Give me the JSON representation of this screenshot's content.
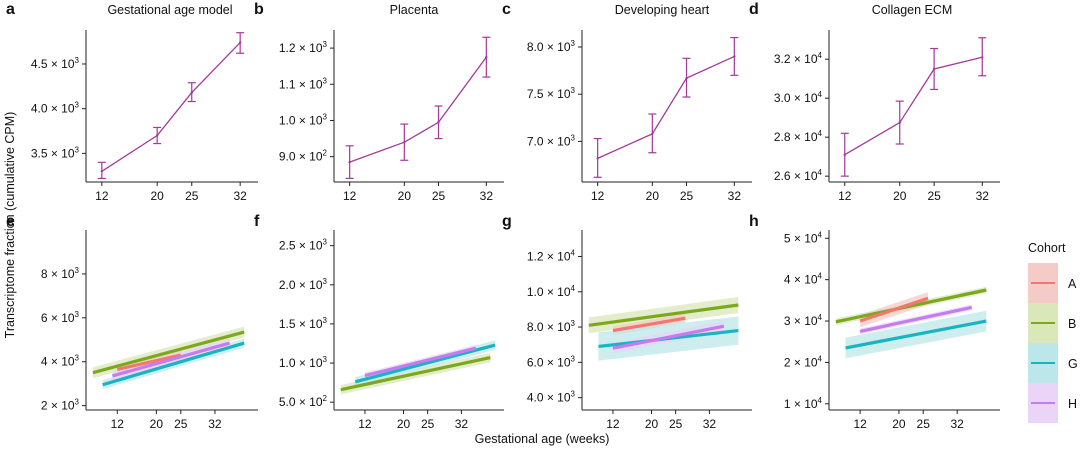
{
  "figure": {
    "ylabel": "Transcriptome fraction (cumulative CPM)",
    "xlabel": "Gestational age (weeks)",
    "legend": {
      "title": "Cohort",
      "entries": [
        {
          "name": "A",
          "color": "#f0786f",
          "band": "#f5cbc7"
        },
        {
          "name": "B",
          "color": "#7ca81e",
          "band": "#d9e7b9"
        },
        {
          "name": "G",
          "color": "#19b4c0",
          "band": "#bce7ea"
        },
        {
          "name": "H",
          "color": "#c47cf0",
          "band": "#ead4f8"
        }
      ]
    }
  },
  "chart_data": [
    {
      "panel": "a",
      "title": "Gestational age model",
      "type": "line",
      "color": "#a3399a",
      "x": [
        12,
        20,
        25,
        32
      ],
      "x_ticks": [
        "12",
        "20",
        "25",
        "32"
      ],
      "xlim": [
        10,
        34
      ],
      "y": [
        3300,
        3700,
        4180,
        4740
      ],
      "y_err_low": [
        3220,
        3610,
        4080,
        4620
      ],
      "y_err_high": [
        3400,
        3790,
        4290,
        4850
      ],
      "ylim": [
        3180,
        4880
      ],
      "y_ticks": [
        {
          "v": 3500,
          "m": "3.5",
          "e": "3"
        },
        {
          "v": 4000,
          "m": "4.0",
          "e": "3"
        },
        {
          "v": 4500,
          "m": "4.5",
          "e": "3"
        }
      ]
    },
    {
      "panel": "b",
      "title": "Placenta",
      "type": "line",
      "color": "#a3399a",
      "x": [
        12,
        20,
        25,
        32
      ],
      "x_ticks": [
        "12",
        "20",
        "25",
        "32"
      ],
      "xlim": [
        10,
        34
      ],
      "y": [
        885,
        940,
        995,
        1175
      ],
      "y_err_low": [
        840,
        890,
        950,
        1120
      ],
      "y_err_high": [
        930,
        990,
        1040,
        1230
      ],
      "ylim": [
        830,
        1250
      ],
      "y_ticks": [
        {
          "v": 900,
          "m": "9.0",
          "e": "2"
        },
        {
          "v": 1000,
          "m": "1.0",
          "e": "3"
        },
        {
          "v": 1100,
          "m": "1.1",
          "e": "3"
        },
        {
          "v": 1200,
          "m": "1.2",
          "e": "3"
        }
      ]
    },
    {
      "panel": "c",
      "title": "Developing heart",
      "type": "line",
      "color": "#a3399a",
      "x": [
        12,
        20,
        25,
        32
      ],
      "x_ticks": [
        "12",
        "20",
        "25",
        "32"
      ],
      "xlim": [
        10,
        34
      ],
      "y": [
        6820,
        7080,
        7670,
        7900
      ],
      "y_err_low": [
        6620,
        6880,
        7470,
        7700
      ],
      "y_err_high": [
        7030,
        7290,
        7880,
        8100
      ],
      "ylim": [
        6570,
        8180
      ],
      "y_ticks": [
        {
          "v": 7000,
          "m": "7.0",
          "e": "3"
        },
        {
          "v": 7500,
          "m": "7.5",
          "e": "3"
        },
        {
          "v": 8000,
          "m": "8.0",
          "e": "3"
        }
      ]
    },
    {
      "panel": "d",
      "title": "Collagen ECM",
      "type": "line",
      "color": "#a3399a",
      "x": [
        12,
        20,
        25,
        32
      ],
      "x_ticks": [
        "12",
        "20",
        "25",
        "32"
      ],
      "xlim": [
        10,
        34
      ],
      "y": [
        27100,
        28750,
        31500,
        32100
      ],
      "y_err_low": [
        26000,
        27650,
        30450,
        31150
      ],
      "y_err_high": [
        28200,
        29850,
        32550,
        33100
      ],
      "ylim": [
        25700,
        33500
      ],
      "y_ticks": [
        {
          "v": 26000,
          "m": "2.6",
          "e": "4"
        },
        {
          "v": 28000,
          "m": "2.8",
          "e": "4"
        },
        {
          "v": 30000,
          "m": "3.0",
          "e": "4"
        },
        {
          "v": 32000,
          "m": "3.2",
          "e": "4"
        }
      ]
    },
    {
      "panel": "e",
      "type": "regression",
      "x_ticks": [
        12,
        20,
        25,
        32
      ],
      "xlim": [
        6,
        40
      ],
      "ylim": [
        1800,
        10000
      ],
      "y_ticks": [
        {
          "v": 2000,
          "m": "2",
          "e": "3"
        },
        {
          "v": 4000,
          "m": "4",
          "e": "3"
        },
        {
          "v": 6000,
          "m": "6",
          "e": "3"
        },
        {
          "v": 8000,
          "m": "8",
          "e": "3"
        }
      ],
      "series": [
        {
          "name": "B",
          "x": [
            7,
            38
          ],
          "y": [
            3500,
            5350
          ],
          "ci": [
            250,
            250
          ]
        },
        {
          "name": "A",
          "x": [
            12,
            25
          ],
          "y": [
            3650,
            4300
          ],
          "ci": [
            200,
            200
          ]
        },
        {
          "name": "G",
          "x": [
            9,
            38
          ],
          "y": [
            2950,
            4850
          ],
          "ci": [
            200,
            200
          ]
        },
        {
          "name": "H",
          "x": [
            11,
            35
          ],
          "y": [
            3350,
            4850
          ],
          "ci": [
            220,
            220
          ]
        }
      ]
    },
    {
      "panel": "f",
      "type": "regression",
      "x_ticks": [
        12,
        20,
        25,
        32
      ],
      "xlim": [
        6,
        40
      ],
      "ylim": [
        400,
        2700
      ],
      "y_ticks": [
        {
          "v": 500,
          "m": "5.0",
          "e": "2"
        },
        {
          "v": 1000,
          "m": "1.0",
          "e": "3"
        },
        {
          "v": 1500,
          "m": "1.5",
          "e": "3"
        },
        {
          "v": 2000,
          "m": "2.0",
          "e": "3"
        },
        {
          "v": 2500,
          "m": "2.5",
          "e": "3"
        }
      ],
      "series": [
        {
          "name": "B",
          "x": [
            7,
            38
          ],
          "y": [
            660,
            1070
          ],
          "ci": [
            60,
            60
          ]
        },
        {
          "name": "G",
          "x": [
            10,
            39
          ],
          "y": [
            760,
            1230
          ],
          "ci": [
            60,
            60
          ]
        },
        {
          "name": "H",
          "x": [
            12,
            35
          ],
          "y": [
            840,
            1190
          ],
          "ci": [
            40,
            40
          ]
        }
      ]
    },
    {
      "panel": "g",
      "type": "regression",
      "x_ticks": [
        12,
        20,
        25,
        32
      ],
      "xlim": [
        6,
        40
      ],
      "ylim": [
        3300,
        13500
      ],
      "y_ticks": [
        {
          "v": 4000,
          "m": "4.0",
          "e": "3"
        },
        {
          "v": 6000,
          "m": "6.0",
          "e": "3"
        },
        {
          "v": 8000,
          "m": "8.0",
          "e": "3"
        },
        {
          "v": 10000,
          "m": "1.0",
          "e": "4"
        },
        {
          "v": 12000,
          "m": "1.2",
          "e": "4"
        }
      ],
      "series": [
        {
          "name": "B",
          "x": [
            7,
            38
          ],
          "y": [
            8100,
            9250
          ],
          "ci": [
            450,
            450
          ]
        },
        {
          "name": "A",
          "x": [
            12,
            27
          ],
          "y": [
            7800,
            8500
          ],
          "ci": [
            250,
            250
          ]
        },
        {
          "name": "G",
          "x": [
            9,
            38
          ],
          "y": [
            6900,
            7800
          ],
          "ci": [
            800,
            800
          ]
        },
        {
          "name": "H",
          "x": [
            12,
            35
          ],
          "y": [
            6800,
            8050
          ],
          "ci": [
            300,
            300
          ]
        }
      ]
    },
    {
      "panel": "h",
      "type": "regression",
      "x_ticks": [
        12,
        20,
        25,
        32
      ],
      "xlim": [
        6,
        40
      ],
      "ylim": [
        8500,
        52000
      ],
      "y_ticks": [
        {
          "v": 10000,
          "m": "1",
          "e": "4"
        },
        {
          "v": 20000,
          "m": "2",
          "e": "4"
        },
        {
          "v": 30000,
          "m": "3",
          "e": "4"
        },
        {
          "v": 40000,
          "m": "4",
          "e": "4"
        },
        {
          "v": 50000,
          "m": "5",
          "e": "4"
        }
      ],
      "series": [
        {
          "name": "B",
          "x": [
            7,
            38
          ],
          "y": [
            29800,
            37500
          ],
          "ci": [
            800,
            800
          ]
        },
        {
          "name": "A",
          "x": [
            12,
            26
          ],
          "y": [
            30000,
            35500
          ],
          "ci": [
            1500,
            1500
          ]
        },
        {
          "name": "H",
          "x": [
            12,
            35
          ],
          "y": [
            27500,
            33300
          ],
          "ci": [
            700,
            700
          ]
        },
        {
          "name": "G",
          "x": [
            9,
            38
          ],
          "y": [
            23500,
            30000
          ],
          "ci": [
            2500,
            2500
          ]
        }
      ]
    }
  ]
}
